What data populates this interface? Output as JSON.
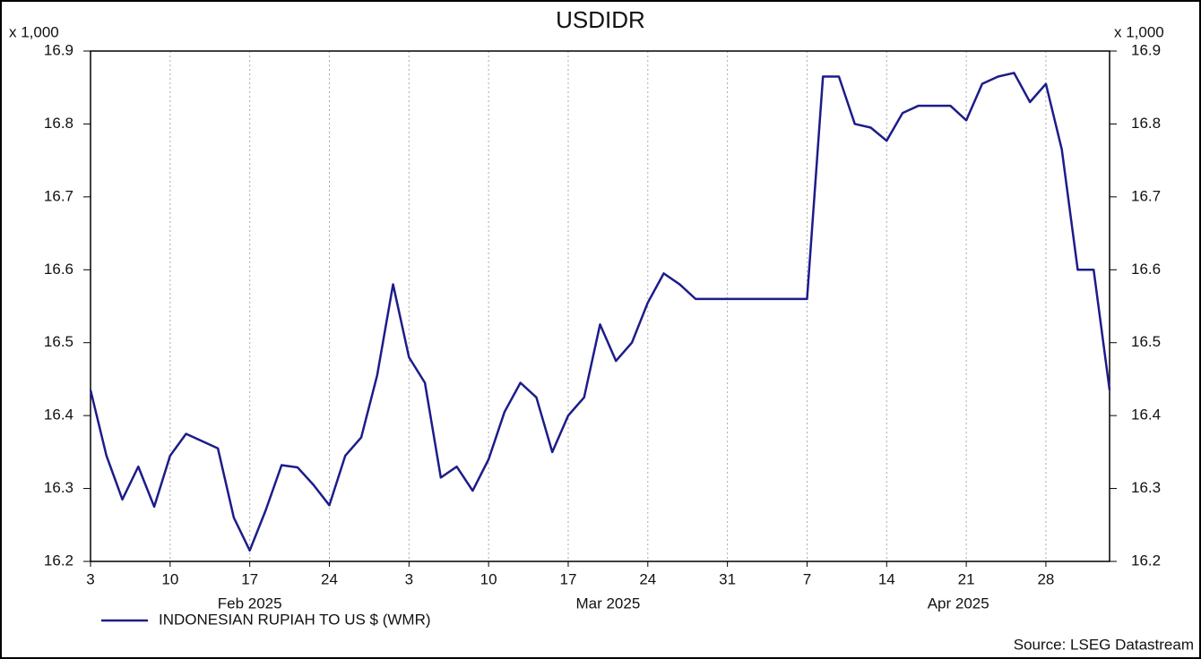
{
  "chart_data": {
    "type": "line",
    "title": "USDIDR",
    "y_unit": "x 1,000",
    "source": "Source: LSEG Datastream",
    "months": [
      "Feb 2025",
      "Mar 2025",
      "Apr 2025"
    ],
    "categories": [
      "3",
      null,
      null,
      null,
      null,
      "10",
      null,
      null,
      null,
      null,
      "17",
      null,
      null,
      null,
      null,
      "24",
      null,
      null,
      null,
      null,
      "3",
      null,
      null,
      null,
      null,
      "10",
      null,
      null,
      null,
      null,
      "17",
      null,
      null,
      null,
      null,
      "24",
      null,
      null,
      null,
      null,
      "31",
      null,
      null,
      null,
      null,
      "7",
      null,
      null,
      null,
      null,
      "14",
      null,
      null,
      null,
      null,
      "21",
      null,
      null,
      null,
      null,
      "28",
      null,
      null,
      null,
      null
    ],
    "series": [
      {
        "name": "INDONESIAN RUPIAH TO US $ (WMR)",
        "color": "#1c1c8a",
        "values": [
          16.435,
          16.345,
          16.285,
          16.33,
          16.275,
          16.345,
          16.375,
          16.365,
          16.355,
          16.26,
          16.215,
          16.27,
          16.332,
          16.329,
          16.305,
          16.277,
          16.345,
          16.37,
          16.455,
          16.58,
          16.48,
          16.445,
          16.315,
          16.33,
          16.297,
          16.34,
          16.405,
          16.445,
          16.425,
          16.35,
          16.4,
          16.425,
          16.525,
          16.475,
          16.5,
          16.555,
          16.595,
          16.58,
          16.56,
          16.56,
          16.56,
          16.56,
          16.56,
          16.56,
          16.56,
          16.56,
          16.865,
          16.865,
          16.8,
          16.795,
          16.777,
          16.815,
          16.825,
          16.825,
          16.825,
          16.805,
          16.855,
          16.865,
          16.87,
          16.83,
          16.855,
          16.765,
          16.6,
          16.6,
          16.435
        ]
      }
    ],
    "ylim": [
      16.2,
      16.9
    ],
    "yticks": [
      16.2,
      16.3,
      16.4,
      16.5,
      16.6,
      16.7,
      16.8,
      16.9
    ],
    "grid": "x"
  }
}
